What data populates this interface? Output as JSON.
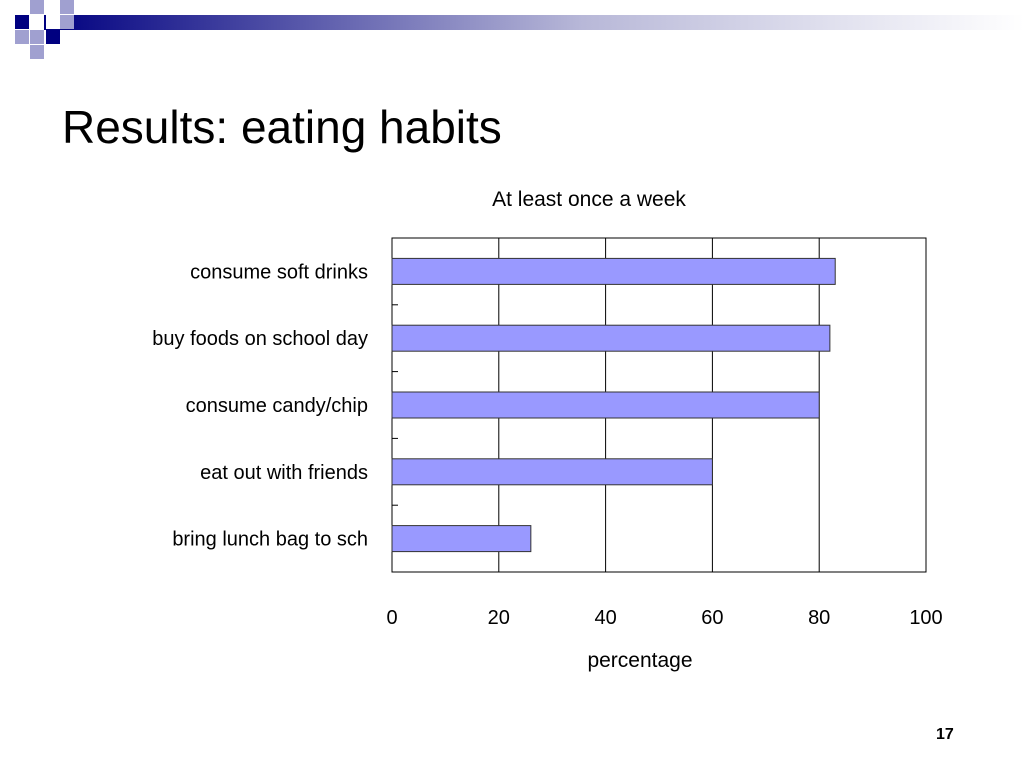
{
  "slide": {
    "title": "Results: eating habits",
    "page_number": "17"
  },
  "colors": {
    "bar_fill": "#9999ff",
    "bar_stroke": "#333333",
    "deco_dark": "#000080",
    "deco_light": "#a0a0d0"
  },
  "chart_data": {
    "type": "bar",
    "orientation": "horizontal",
    "title": "At least once a week",
    "xlabel": "percentage",
    "ylabel": "",
    "categories": [
      "consume soft drinks",
      "buy foods on school day",
      "consume candy/chip",
      "eat out with friends",
      "bring lunch bag to sch"
    ],
    "values": [
      83,
      82,
      80,
      60,
      26
    ],
    "xlim": [
      0,
      100
    ],
    "xticks": [
      0,
      20,
      40,
      60,
      80,
      100
    ],
    "grid": true,
    "legend": "none"
  }
}
